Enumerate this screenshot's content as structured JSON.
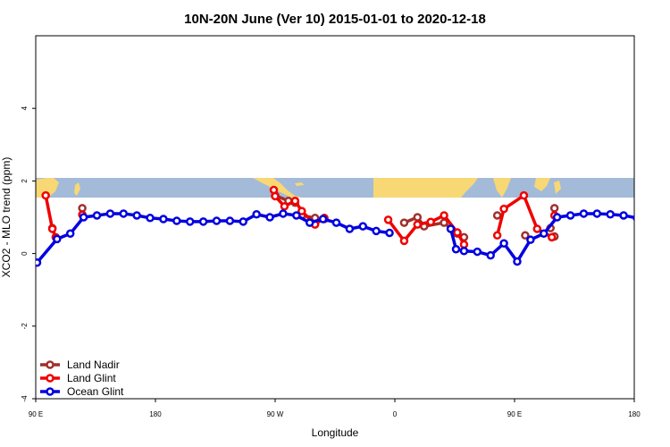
{
  "chart_data": {
    "type": "line",
    "title": "10N-20N June (Ver 10)   2015-01-01 to 2020-12-18",
    "xlabel": "Longitude",
    "ylabel": "XCO2 - MLO trend (ppm)",
    "xlim": [
      -90,
      360
    ],
    "ylim": [
      -4,
      6
    ],
    "x_ticks": [
      {
        "value": -90,
        "label": "90 E"
      },
      {
        "value": 0,
        "label": "180"
      },
      {
        "value": 90,
        "label": "90 W"
      },
      {
        "value": 180,
        "label": "0"
      },
      {
        "value": 270,
        "label": "90 E"
      },
      {
        "value": 360,
        "label": "180"
      }
    ],
    "y_ticks": [
      {
        "value": -4,
        "label": "-4"
      },
      {
        "value": -2,
        "label": "-2"
      },
      {
        "value": 0,
        "label": "0"
      },
      {
        "value": 2,
        "label": "2"
      },
      {
        "value": 4,
        "label": "4"
      }
    ],
    "map_band": {
      "y_range": [
        1.45,
        2.0
      ],
      "ocean_color": "#a3bad9",
      "land_color": "#f8d874"
    },
    "legend_position": "bottom-left",
    "series": [
      {
        "name": "Land Nadir",
        "color": "#a0302c",
        "segments": [
          [
            [
              -77.5,
              0.7
            ]
          ],
          [
            [
              -55,
              1.25
            ]
          ],
          [
            [
              90,
              1.6
            ],
            [
              100,
              1.45
            ],
            [
              105,
              1.4
            ]
          ],
          [
            [
              110,
              1.05
            ],
            [
              120,
              0.98
            ],
            [
              127,
              0.95
            ]
          ],
          [
            [
              187,
              0.85
            ],
            [
              197,
              1.0
            ],
            [
              202,
              0.75
            ],
            [
              217,
              0.85
            ],
            [
              227,
              0.55
            ],
            [
              232,
              0.45
            ]
          ],
          [
            [
              257,
              1.05
            ]
          ],
          [
            [
              278,
              0.5
            ]
          ],
          [
            [
              297,
              0.7
            ]
          ],
          [
            [
              300,
              0.47
            ]
          ],
          [
            [
              300,
              1.25
            ]
          ]
        ]
      },
      {
        "name": "Land Glint",
        "color": "#f00000",
        "segments": [
          [
            [
              -82.5,
              1.6
            ],
            [
              -77.5,
              0.68
            ],
            [
              -75,
              0.45
            ]
          ],
          [
            [
              -55,
              1.07
            ]
          ],
          [
            [
              89,
              1.75
            ],
            [
              90,
              1.58
            ],
            [
              97,
              1.3
            ],
            [
              105,
              1.45
            ],
            [
              110,
              1.17
            ],
            [
              120,
              0.8
            ],
            [
              127,
              0.98
            ]
          ],
          [
            [
              175,
              0.93
            ],
            [
              187,
              0.35
            ],
            [
              197,
              0.8
            ],
            [
              207,
              0.87
            ],
            [
              217,
              1.05
            ],
            [
              227,
              0.58
            ],
            [
              232,
              0.25
            ]
          ],
          [
            [
              257,
              0.5
            ],
            [
              262,
              1.23
            ],
            [
              277,
              1.6
            ],
            [
              287,
              0.68
            ],
            [
              298,
              0.45
            ]
          ],
          [
            [
              300,
              1.05
            ]
          ]
        ]
      },
      {
        "name": "Ocean Glint",
        "color": "#0000e0",
        "segments": [
          [
            [
              -89,
              -0.25
            ],
            [
              -74,
              0.4
            ],
            [
              -64,
              0.55
            ],
            [
              -54,
              1.0
            ],
            [
              -44,
              1.05
            ],
            [
              -34,
              1.1
            ],
            [
              -24,
              1.1
            ],
            [
              -14,
              1.05
            ],
            [
              -4,
              0.98
            ],
            [
              6,
              0.95
            ],
            [
              16,
              0.9
            ],
            [
              26,
              0.88
            ],
            [
              36,
              0.88
            ],
            [
              46,
              0.9
            ],
            [
              56,
              0.9
            ],
            [
              66,
              0.88
            ],
            [
              76,
              1.08
            ],
            [
              86,
              1.0
            ],
            [
              96,
              1.1
            ],
            [
              106,
              1.05
            ],
            [
              116,
              0.85
            ],
            [
              126,
              0.95
            ],
            [
              136,
              0.85
            ],
            [
              146,
              0.68
            ],
            [
              156,
              0.75
            ],
            [
              166,
              0.62
            ],
            [
              176,
              0.57
            ]
          ],
          [
            [
              222,
              0.68
            ],
            [
              226,
              0.12
            ],
            [
              232,
              0.07
            ],
            [
              242,
              0.05
            ],
            [
              252,
              -0.05
            ],
            [
              262,
              0.28
            ],
            [
              272,
              -0.22
            ],
            [
              282,
              0.38
            ],
            [
              292,
              0.55
            ],
            [
              302,
              1.0
            ],
            [
              312,
              1.05
            ],
            [
              322,
              1.1
            ],
            [
              332,
              1.1
            ],
            [
              342,
              1.08
            ],
            [
              352,
              1.05
            ],
            [
              362,
              0.98
            ]
          ]
        ]
      }
    ]
  }
}
